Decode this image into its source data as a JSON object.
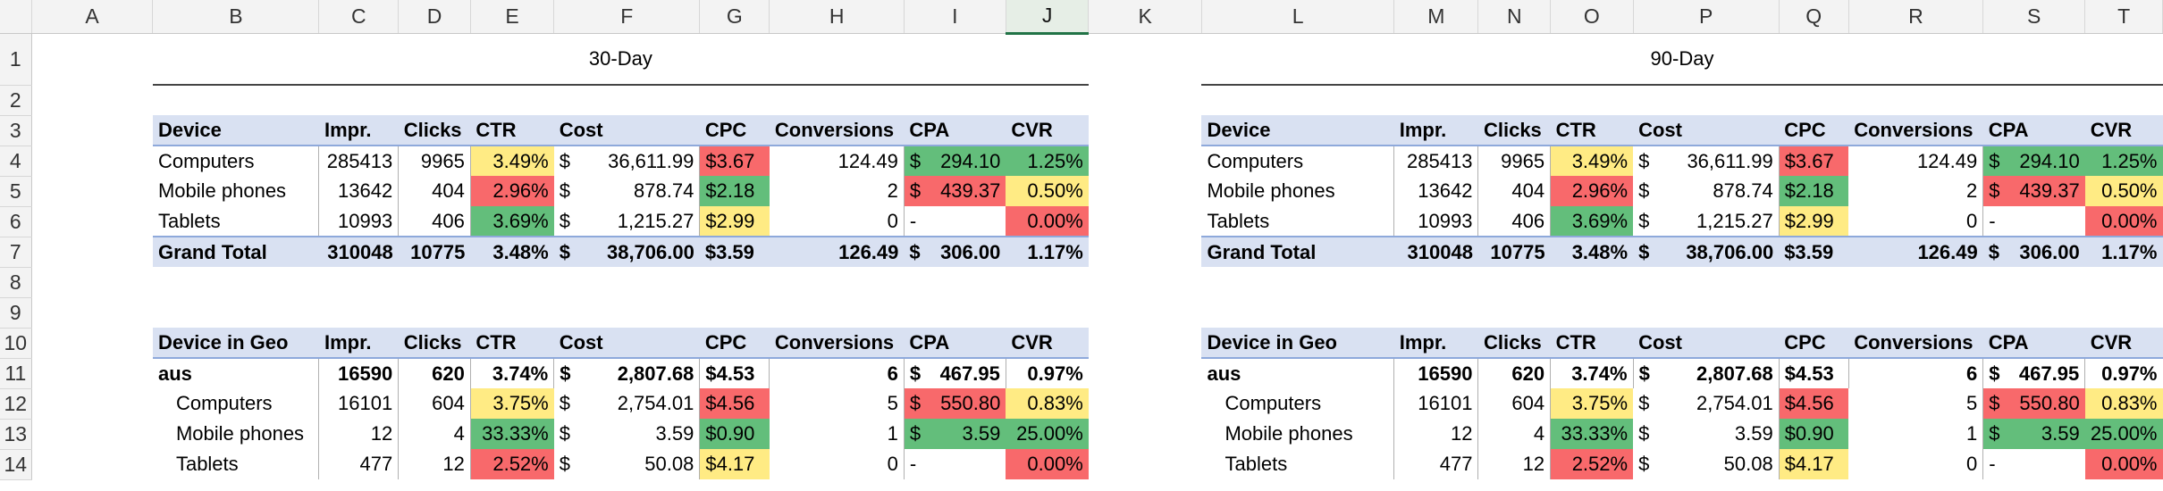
{
  "columns": [
    "A",
    "B",
    "C",
    "D",
    "E",
    "F",
    "G",
    "H",
    "I",
    "J",
    "K",
    "L",
    "M",
    "N",
    "O",
    "P",
    "Q",
    "R",
    "S",
    "T"
  ],
  "selected_column": "J",
  "rows": [
    "1",
    "2",
    "3",
    "4",
    "5",
    "6",
    "7",
    "8",
    "9",
    "10",
    "11",
    "12",
    "13",
    "14"
  ],
  "colors": {
    "green": "#63be7b",
    "yellow": "#ffeb84",
    "red": "#f8696b",
    "header_fill": "#d9e1f2"
  },
  "left": {
    "title": "30-Day",
    "summary": {
      "header": [
        "Device",
        "Impr.",
        "Clicks",
        "CTR",
        "Cost",
        "CPC",
        "Conversions",
        "CPA",
        "CVR"
      ],
      "rows": [
        {
          "device": "Computers",
          "impr": "285413",
          "clicks": "9965",
          "ctr": "3.49%",
          "cost_sym": "$",
          "cost": "36,611.99",
          "cpc": "$3.67",
          "conv": "124.49",
          "cpa_sym": "$",
          "cpa": "294.10",
          "cvr": "1.25%"
        },
        {
          "device": "Mobile phones",
          "impr": "13642",
          "clicks": "404",
          "ctr": "2.96%",
          "cost_sym": "$",
          "cost": "878.74",
          "cpc": "$2.18",
          "conv": "2",
          "cpa_sym": "$",
          "cpa": "439.37",
          "cvr": "0.50%"
        },
        {
          "device": "Tablets",
          "impr": "10993",
          "clicks": "406",
          "ctr": "3.69%",
          "cost_sym": "$",
          "cost": "1,215.27",
          "cpc": "$2.99",
          "conv": "0",
          "cpa_sym": "-",
          "cpa": "",
          "cvr": "0.00%"
        }
      ],
      "total": {
        "device": "Grand Total",
        "impr": "310048",
        "clicks": "10775",
        "ctr": "3.48%",
        "cost_sym": "$",
        "cost": "38,706.00",
        "cpc": "$3.59",
        "conv": "126.49",
        "cpa_sym": "$",
        "cpa": "306.00",
        "cvr": "1.17%"
      }
    },
    "geo": {
      "header": [
        "Device in Geo",
        "Impr.",
        "Clicks",
        "CTR",
        "Cost",
        "CPC",
        "Conversions",
        "CPA",
        "CVR"
      ],
      "group": {
        "device": "aus",
        "impr": "16590",
        "clicks": "620",
        "ctr": "3.74%",
        "cost_sym": "$",
        "cost": "2,807.68",
        "cpc": "$4.53",
        "conv": "6",
        "cpa_sym": "$",
        "cpa": "467.95",
        "cvr": "0.97%"
      },
      "rows": [
        {
          "device": "Computers",
          "impr": "16101",
          "clicks": "604",
          "ctr": "3.75%",
          "cost_sym": "$",
          "cost": "2,754.01",
          "cpc": "$4.56",
          "conv": "5",
          "cpa_sym": "$",
          "cpa": "550.80",
          "cvr": "0.83%"
        },
        {
          "device": "Mobile phones",
          "impr": "12",
          "clicks": "4",
          "ctr": "33.33%",
          "cost_sym": "$",
          "cost": "3.59",
          "cpc": "$0.90",
          "conv": "1",
          "cpa_sym": "$",
          "cpa": "3.59",
          "cvr": "25.00%"
        },
        {
          "device": "Tablets",
          "impr": "477",
          "clicks": "12",
          "ctr": "2.52%",
          "cost_sym": "$",
          "cost": "50.08",
          "cpc": "$4.17",
          "conv": "0",
          "cpa_sym": "-",
          "cpa": "",
          "cvr": "0.00%"
        }
      ]
    }
  },
  "right": {
    "title": "90-Day",
    "summary": {
      "header": [
        "Device",
        "Impr.",
        "Clicks",
        "CTR",
        "Cost",
        "CPC",
        "Conversions",
        "CPA",
        "CVR"
      ],
      "rows": [
        {
          "device": "Computers",
          "impr": "285413",
          "clicks": "9965",
          "ctr": "3.49%",
          "cost_sym": "$",
          "cost": "36,611.99",
          "cpc": "$3.67",
          "conv": "124.49",
          "cpa_sym": "$",
          "cpa": "294.10",
          "cvr": "1.25%"
        },
        {
          "device": "Mobile phones",
          "impr": "13642",
          "clicks": "404",
          "ctr": "2.96%",
          "cost_sym": "$",
          "cost": "878.74",
          "cpc": "$2.18",
          "conv": "2",
          "cpa_sym": "$",
          "cpa": "439.37",
          "cvr": "0.50%"
        },
        {
          "device": "Tablets",
          "impr": "10993",
          "clicks": "406",
          "ctr": "3.69%",
          "cost_sym": "$",
          "cost": "1,215.27",
          "cpc": "$2.99",
          "conv": "0",
          "cpa_sym": "-",
          "cpa": "",
          "cvr": "0.00%"
        }
      ],
      "total": {
        "device": "Grand Total",
        "impr": "310048",
        "clicks": "10775",
        "ctr": "3.48%",
        "cost_sym": "$",
        "cost": "38,706.00",
        "cpc": "$3.59",
        "conv": "126.49",
        "cpa_sym": "$",
        "cpa": "306.00",
        "cvr": "1.17%"
      }
    },
    "geo": {
      "header": [
        "Device in Geo",
        "Impr.",
        "Clicks",
        "CTR",
        "Cost",
        "CPC",
        "Conversions",
        "CPA",
        "CVR"
      ],
      "group": {
        "device": "aus",
        "impr": "16590",
        "clicks": "620",
        "ctr": "3.74%",
        "cost_sym": "$",
        "cost": "2,807.68",
        "cpc": "$4.53",
        "conv": "6",
        "cpa_sym": "$",
        "cpa": "467.95",
        "cvr": "0.97%"
      },
      "rows": [
        {
          "device": "Computers",
          "impr": "16101",
          "clicks": "604",
          "ctr": "3.75%",
          "cost_sym": "$",
          "cost": "2,754.01",
          "cpc": "$4.56",
          "conv": "5",
          "cpa_sym": "$",
          "cpa": "550.80",
          "cvr": "0.83%"
        },
        {
          "device": "Mobile phones",
          "impr": "12",
          "clicks": "4",
          "ctr": "33.33%",
          "cost_sym": "$",
          "cost": "3.59",
          "cpc": "$0.90",
          "conv": "1",
          "cpa_sym": "$",
          "cpa": "3.59",
          "cvr": "25.00%"
        },
        {
          "device": "Tablets",
          "impr": "477",
          "clicks": "12",
          "ctr": "2.52%",
          "cost_sym": "$",
          "cost": "50.08",
          "cpc": "$4.17",
          "conv": "0",
          "cpa_sym": "-",
          "cpa": "",
          "cvr": "0.00%"
        }
      ]
    }
  }
}
